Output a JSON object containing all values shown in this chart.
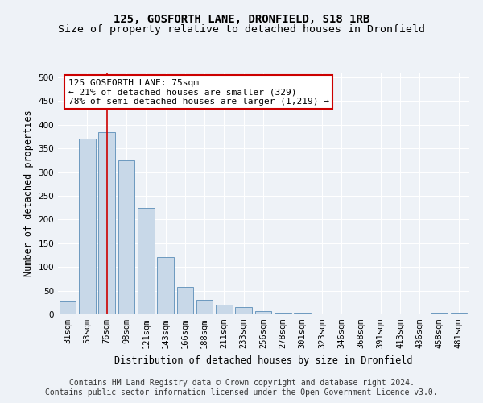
{
  "title": "125, GOSFORTH LANE, DRONFIELD, S18 1RB",
  "subtitle": "Size of property relative to detached houses in Dronfield",
  "xlabel": "Distribution of detached houses by size in Dronfield",
  "ylabel": "Number of detached properties",
  "categories": [
    "31sqm",
    "53sqm",
    "76sqm",
    "98sqm",
    "121sqm",
    "143sqm",
    "166sqm",
    "188sqm",
    "211sqm",
    "233sqm",
    "256sqm",
    "278sqm",
    "301sqm",
    "323sqm",
    "346sqm",
    "368sqm",
    "391sqm",
    "413sqm",
    "436sqm",
    "458sqm",
    "481sqm"
  ],
  "values": [
    28,
    370,
    385,
    325,
    225,
    120,
    58,
    30,
    20,
    15,
    6,
    4,
    3,
    2,
    1,
    1,
    0,
    0,
    0,
    4,
    4
  ],
  "bar_color": "#c8d8e8",
  "bar_edge_color": "#5b8db8",
  "vline_color": "#cc0000",
  "vline_x": 2,
  "annotation_text": "125 GOSFORTH LANE: 75sqm\n← 21% of detached houses are smaller (329)\n78% of semi-detached houses are larger (1,219) →",
  "annotation_box_facecolor": "#ffffff",
  "annotation_box_edgecolor": "#cc0000",
  "footer_line1": "Contains HM Land Registry data © Crown copyright and database right 2024.",
  "footer_line2": "Contains public sector information licensed under the Open Government Licence v3.0.",
  "ylim": [
    0,
    510
  ],
  "yticks": [
    0,
    50,
    100,
    150,
    200,
    250,
    300,
    350,
    400,
    450,
    500
  ],
  "background_color": "#eef2f7",
  "grid_color": "#ffffff",
  "title_fontsize": 10,
  "subtitle_fontsize": 9.5,
  "axis_label_fontsize": 8.5,
  "tick_fontsize": 7.5,
  "footer_fontsize": 7,
  "annotation_fontsize": 8
}
